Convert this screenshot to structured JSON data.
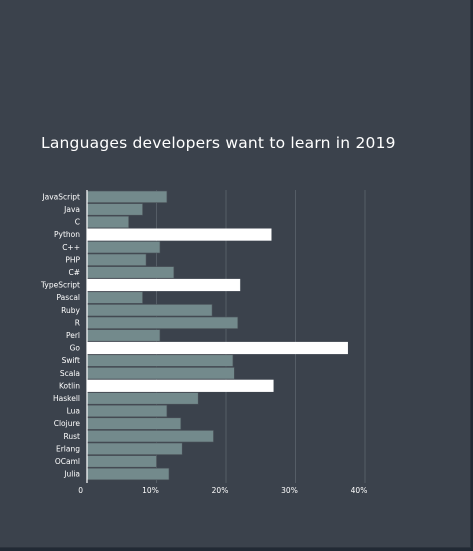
{
  "chart_data": {
    "type": "bar",
    "orientation": "horizontal",
    "title": "Languages developers want to learn in 2019",
    "categories": [
      "JavaScript",
      "Java",
      "C",
      "Python",
      "C++",
      "PHP",
      "C#",
      "TypeScript",
      "Pascal",
      "Ruby",
      "R",
      "Perl",
      "Go",
      "Swift",
      "Scala",
      "Kotlin",
      "Haskell",
      "Lua",
      "Clojure",
      "Rust",
      "Erlang",
      "OCaml",
      "Julia"
    ],
    "values": [
      11.5,
      8,
      6,
      26.5,
      10.5,
      8.5,
      12.5,
      22,
      8,
      18,
      21.7,
      10.5,
      37.5,
      21,
      21.2,
      26.8,
      16,
      11.5,
      13.5,
      18.2,
      13.7,
      10,
      11.8
    ],
    "highlighted": [
      "Python",
      "TypeScript",
      "Go",
      "Kotlin"
    ],
    "xlim": [
      0,
      40
    ],
    "xticks": [
      {
        "value": 0,
        "label": "0"
      },
      {
        "value": 10,
        "label": "10%"
      },
      {
        "value": 20,
        "label": "20%"
      },
      {
        "value": 30,
        "label": "30%"
      },
      {
        "value": 40,
        "label": "40%"
      }
    ],
    "colors": {
      "bar": "#738a8c",
      "highlight": "#ffffff",
      "bar_stroke": "#4a5058",
      "grid": "#555d66",
      "axis": "#ffffff",
      "background": "#3b424c"
    },
    "grid": true
  }
}
